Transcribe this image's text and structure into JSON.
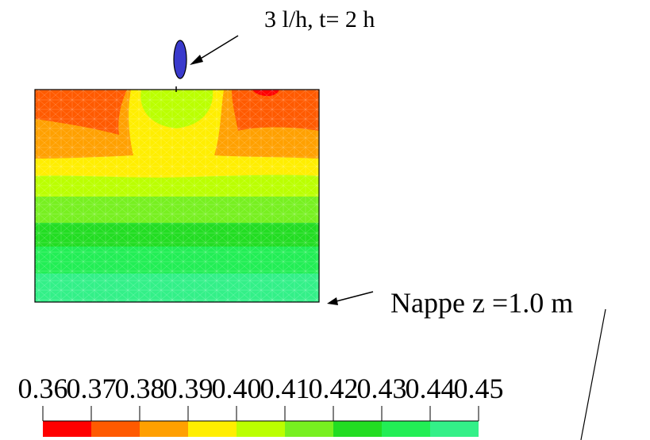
{
  "annotations": {
    "dripper_label": "3 l/h, t= 2 h",
    "water_table_label": "Nappe z =1.0 m"
  },
  "colors": {
    "dripper_fill": "#3a3acc",
    "mesh_line": "#ffffff"
  },
  "color_scale": {
    "tick_labels": [
      "0.36",
      "0.37",
      "0.38",
      "0.39",
      "0.40",
      "0.41",
      "0.42",
      "0.43",
      "0.44",
      "0.45"
    ],
    "bins": [
      {
        "color": "#ff0000"
      },
      {
        "color": "#ff5a00"
      },
      {
        "color": "#ffa000"
      },
      {
        "color": "#ffee00"
      },
      {
        "color": "#bbff00"
      },
      {
        "color": "#77f020"
      },
      {
        "color": "#22dd22"
      },
      {
        "color": "#22ee55"
      },
      {
        "color": "#33f088"
      }
    ]
  }
}
